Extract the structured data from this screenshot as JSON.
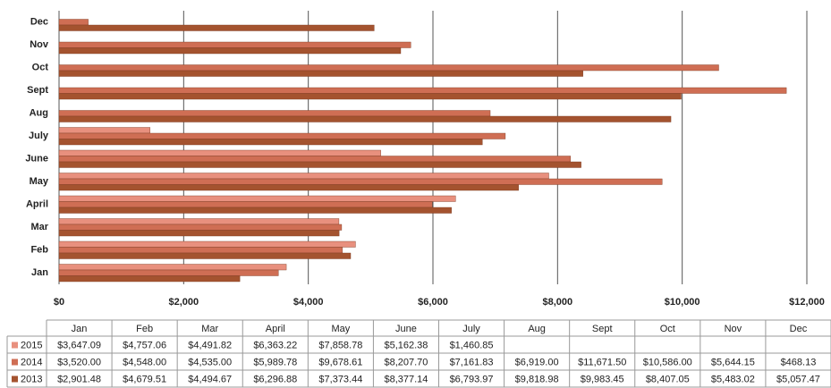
{
  "chart_data": {
    "type": "bar",
    "orientation": "horizontal",
    "categories": [
      "Jan",
      "Feb",
      "Mar",
      "April",
      "May",
      "June",
      "July",
      "Aug",
      "Sept",
      "Oct",
      "Nov",
      "Dec"
    ],
    "series": [
      {
        "name": "2015",
        "color": "#e8907e",
        "values": [
          3647.09,
          4757.06,
          4491.82,
          6363.22,
          7858.78,
          5162.38,
          1460.85,
          null,
          null,
          null,
          null,
          null
        ],
        "value_labels": [
          "$3,647.09",
          "$4,757.06",
          "$4,491.82",
          "$6,363.22",
          "$7,858.78",
          "$5,162.38",
          "$1,460.85",
          null,
          null,
          null,
          null,
          null
        ]
      },
      {
        "name": "2014",
        "color": "#cf6e54",
        "values": [
          3520.0,
          4548.0,
          4535.0,
          5989.78,
          9678.61,
          8207.7,
          7161.83,
          6919.0,
          11671.5,
          10586.0,
          5644.15,
          468.13
        ],
        "value_labels": [
          "$3,520.00",
          "$4,548.00",
          "$4,535.00",
          "$5,989.78",
          "$9,678.61",
          "$8,207.70",
          "$7,161.83",
          "$6,919.00",
          "$11,671.50",
          "$10,586.00",
          "$5,644.15",
          "$468.13"
        ]
      },
      {
        "name": "2013",
        "color": "#a4532f",
        "values": [
          2901.48,
          4679.51,
          4494.67,
          6296.88,
          7373.44,
          8377.14,
          6793.97,
          9818.98,
          9983.45,
          8407.05,
          5483.02,
          5057.47
        ],
        "value_labels": [
          "$2,901.48",
          "$4,679.51",
          "$4,494.67",
          "$6,296.88",
          "$7,373.44",
          "$8,377.14",
          "$6,793.97",
          "$9,818.98",
          "$9,983.45",
          "$8,407.05",
          "$5,483.02",
          "$5,057.47"
        ]
      }
    ],
    "xlim": [
      0,
      12000
    ],
    "xticks": [
      {
        "value": 0,
        "label": "$0"
      },
      {
        "value": 2000,
        "label": "$2,000"
      },
      {
        "value": 4000,
        "label": "$4,000"
      },
      {
        "value": 6000,
        "label": "$6,000"
      },
      {
        "value": 8000,
        "label": "$8,000"
      },
      {
        "value": 10000,
        "label": "$10,000"
      },
      {
        "value": 12000,
        "label": "$12,000"
      }
    ],
    "grid": true,
    "data_table": true
  }
}
